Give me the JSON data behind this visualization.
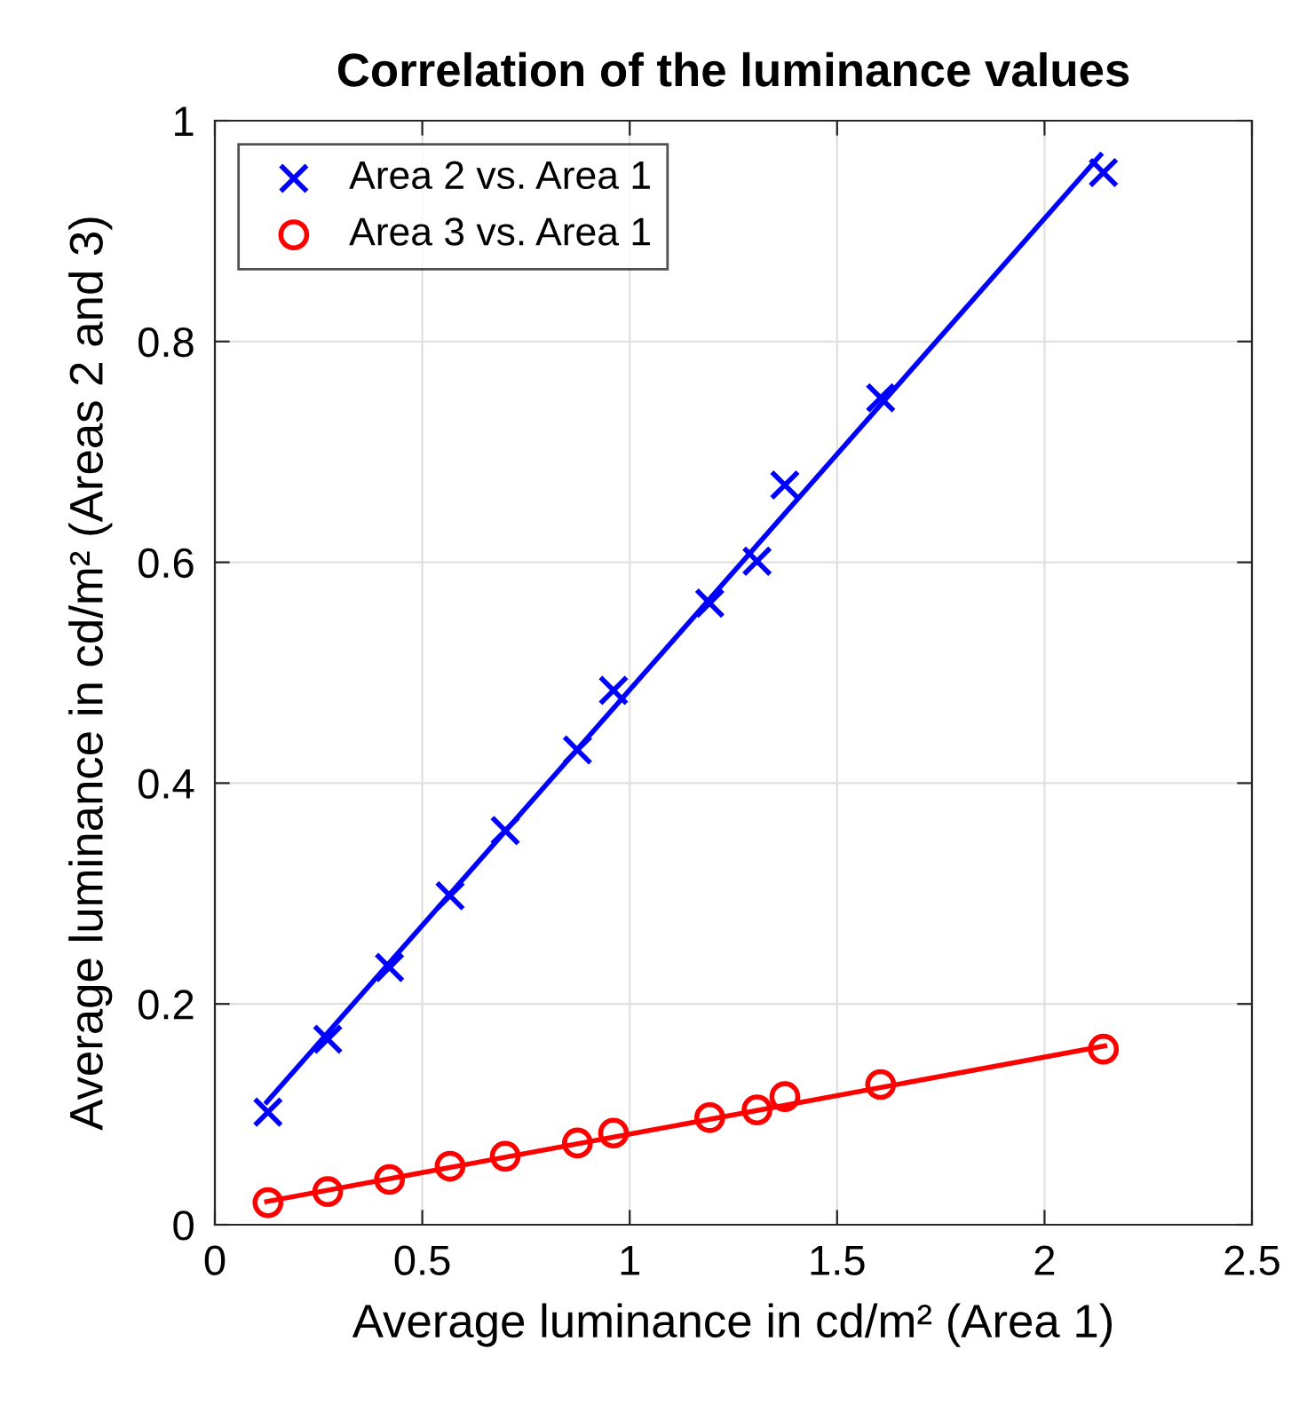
{
  "chart_data": {
    "type": "scatter",
    "title": "Correlation of the luminance values",
    "xlabel": "Average luminance in cd/m² (Area 1)",
    "ylabel": "Average luminance in cd/m² (Areas 2 and 3)",
    "x": [
      0.128,
      0.272,
      0.421,
      0.567,
      0.7,
      0.874,
      0.961,
      1.193,
      1.307,
      1.374,
      1.605,
      2.142
    ],
    "series": [
      {
        "name": "Area 2 vs. Area 1",
        "color": "#0000ff",
        "marker": "cross",
        "values": [
          0.102,
          0.168,
          0.233,
          0.298,
          0.357,
          0.43,
          0.484,
          0.563,
          0.601,
          0.67,
          0.749,
          0.953
        ]
      },
      {
        "name": "Area 3 vs. Area 1",
        "color": "#ff0000",
        "marker": "circle",
        "values": [
          0.02,
          0.03,
          0.041,
          0.053,
          0.062,
          0.074,
          0.083,
          0.097,
          0.104,
          0.116,
          0.127,
          0.159
        ]
      },
      {
        "type": "line",
        "color": "#0000ff",
        "x": [
          0.125,
          2.135
        ],
        "values": [
          0.111,
          0.969
        ]
      },
      {
        "type": "line",
        "color": "#ff0000",
        "x": [
          0.125,
          2.145
        ],
        "values": [
          0.021,
          0.162
        ]
      }
    ],
    "xlim": [
      0,
      2.5
    ],
    "xticks": [
      0,
      0.5,
      1,
      1.5,
      2,
      2.5
    ],
    "ylim": [
      0,
      1
    ],
    "yticks": [
      0,
      0.2,
      0.4,
      0.6,
      0.8,
      1
    ],
    "grid": true,
    "legend": "top left"
  }
}
